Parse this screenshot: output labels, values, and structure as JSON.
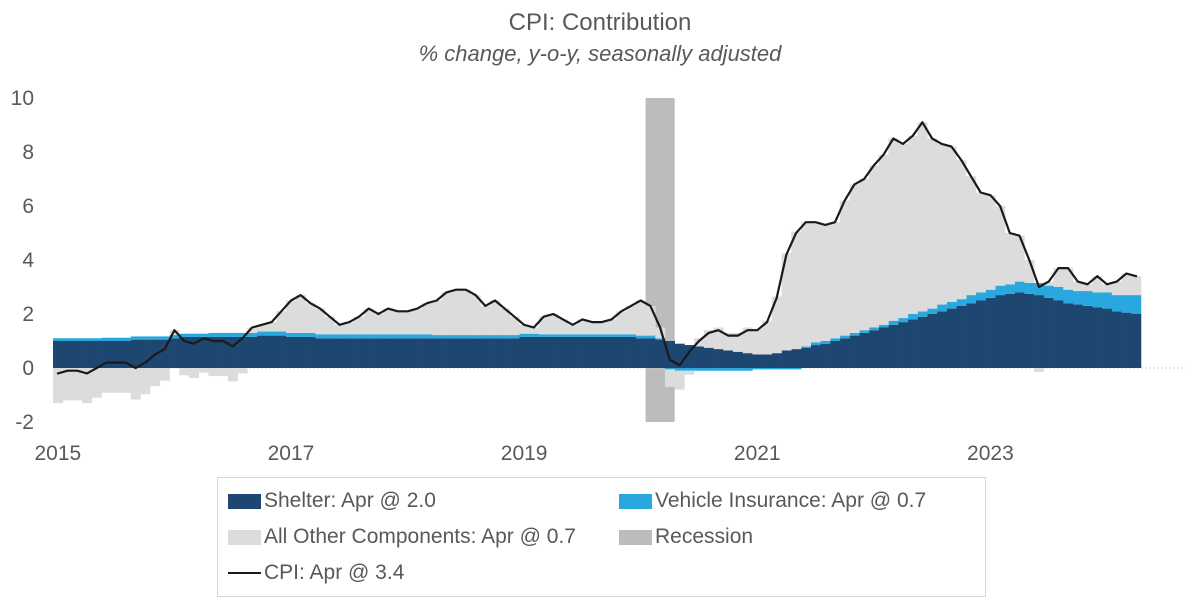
{
  "title": "CPI: Contribution",
  "subtitle": "% change, y-o-y, seasonally adjusted",
  "colors": {
    "shelter": "#1d4670",
    "vehicle_insurance": "#29a8df",
    "all_other": "#dcdcdc",
    "recession": "#bcbcbc",
    "cpi_line": "#1a1a1a",
    "text": "#595959",
    "zero_line": "#cfcfcf",
    "legend_border": "#d6d6d6"
  },
  "legend": {
    "items": [
      {
        "label": "Shelter: Apr @ 2.0",
        "color": "#1d4670",
        "type": "box"
      },
      {
        "label": "Vehicle Insurance: Apr @ 0.7",
        "color": "#29a8df",
        "type": "box"
      },
      {
        "label": "All Other Components: Apr @ 0.7",
        "color": "#dcdcdc",
        "type": "box"
      },
      {
        "label": "Recession",
        "color": "#bcbcbc",
        "type": "box"
      },
      {
        "label": "CPI: Apr @ 3.4",
        "color": "#1a1a1a",
        "type": "line"
      }
    ]
  },
  "chart_data": {
    "type": "bar",
    "subtype": "stacked-monthly-bars-with-line",
    "start": "2015-01",
    "end": "2024-04",
    "frequency": "monthly",
    "title": "CPI: Contribution",
    "subtitle": "% change, y-o-y, seasonally adjusted",
    "xlabel": "",
    "ylabel": "",
    "y_axis": {
      "min": -2,
      "max": 10,
      "ticks": [
        10,
        8,
        6,
        4,
        2,
        0,
        -2
      ],
      "grid": false
    },
    "x_axis": {
      "ticks": [
        {
          "label": "2015",
          "month_index": 0
        },
        {
          "label": "2017",
          "month_index": 24
        },
        {
          "label": "2019",
          "month_index": 48
        },
        {
          "label": "2021",
          "month_index": 72
        },
        {
          "label": "2023",
          "month_index": 96
        }
      ]
    },
    "recession": {
      "label": "Recession",
      "color": "#bcbcbc",
      "start_month_index": 61,
      "end_month_index": 63
    },
    "series": [
      {
        "name": "Shelter: Apr @ 2.0",
        "color": "#1d4670",
        "values": [
          1.0,
          1.0,
          1.0,
          1.0,
          1.0,
          1.0,
          1.0,
          1.0,
          1.05,
          1.05,
          1.05,
          1.05,
          1.1,
          1.15,
          1.15,
          1.15,
          1.15,
          1.15,
          1.15,
          1.15,
          1.15,
          1.2,
          1.2,
          1.2,
          1.15,
          1.15,
          1.15,
          1.1,
          1.1,
          1.1,
          1.1,
          1.1,
          1.1,
          1.1,
          1.1,
          1.1,
          1.1,
          1.1,
          1.1,
          1.1,
          1.1,
          1.1,
          1.1,
          1.1,
          1.1,
          1.1,
          1.1,
          1.1,
          1.15,
          1.15,
          1.15,
          1.15,
          1.15,
          1.15,
          1.15,
          1.15,
          1.15,
          1.15,
          1.15,
          1.15,
          1.1,
          1.1,
          1.05,
          1.0,
          0.9,
          0.85,
          0.8,
          0.75,
          0.7,
          0.65,
          0.6,
          0.55,
          0.5,
          0.5,
          0.55,
          0.65,
          0.7,
          0.75,
          0.85,
          0.9,
          1.0,
          1.1,
          1.2,
          1.3,
          1.4,
          1.5,
          1.6,
          1.7,
          1.8,
          1.9,
          2.0,
          2.1,
          2.2,
          2.3,
          2.4,
          2.5,
          2.6,
          2.7,
          2.75,
          2.8,
          2.75,
          2.7,
          2.6,
          2.5,
          2.4,
          2.35,
          2.3,
          2.25,
          2.2,
          2.1,
          2.05,
          2.0
        ]
      },
      {
        "name": "Vehicle Insurance: Apr @ 0.7",
        "color": "#29a8df",
        "values": [
          0.1,
          0.1,
          0.1,
          0.1,
          0.1,
          0.12,
          0.12,
          0.12,
          0.12,
          0.12,
          0.12,
          0.12,
          0.12,
          0.12,
          0.12,
          0.12,
          0.15,
          0.15,
          0.15,
          0.15,
          0.15,
          0.15,
          0.15,
          0.15,
          0.15,
          0.15,
          0.15,
          0.15,
          0.15,
          0.15,
          0.15,
          0.15,
          0.15,
          0.15,
          0.15,
          0.15,
          0.15,
          0.15,
          0.15,
          0.12,
          0.12,
          0.12,
          0.12,
          0.12,
          0.12,
          0.12,
          0.12,
          0.12,
          0.12,
          0.12,
          0.1,
          0.1,
          0.1,
          0.1,
          0.1,
          0.1,
          0.1,
          0.1,
          0.1,
          0.1,
          0.1,
          0.1,
          0.05,
          -0.05,
          -0.1,
          -0.1,
          -0.1,
          -0.1,
          -0.1,
          -0.1,
          -0.1,
          -0.1,
          -0.05,
          -0.05,
          -0.05,
          -0.05,
          -0.05,
          0.05,
          0.1,
          0.1,
          0.1,
          0.1,
          0.1,
          0.1,
          0.1,
          0.1,
          0.15,
          0.15,
          0.2,
          0.2,
          0.2,
          0.25,
          0.25,
          0.25,
          0.3,
          0.3,
          0.3,
          0.35,
          0.35,
          0.4,
          0.4,
          0.45,
          0.45,
          0.5,
          0.5,
          0.5,
          0.55,
          0.55,
          0.6,
          0.6,
          0.65,
          0.7
        ]
      },
      {
        "name": "All Other Components: Apr @ 0.7",
        "color": "#dcdcdc",
        "values": [
          -1.3,
          -1.2,
          -1.2,
          -1.3,
          -1.1,
          -0.92,
          -0.92,
          -0.92,
          -1.17,
          -0.97,
          -0.67,
          -0.47,
          0.18,
          -0.27,
          -0.37,
          -0.17,
          -0.3,
          -0.3,
          -0.5,
          -0.2,
          0.2,
          0.25,
          0.35,
          0.75,
          1.2,
          1.4,
          1.1,
          0.95,
          0.65,
          0.35,
          0.45,
          0.65,
          0.95,
          0.75,
          0.95,
          0.85,
          0.85,
          0.95,
          1.15,
          1.28,
          1.58,
          1.68,
          1.68,
          1.48,
          1.08,
          1.28,
          0.98,
          0.68,
          0.33,
          0.23,
          0.65,
          0.75,
          0.55,
          0.35,
          0.55,
          0.45,
          0.45,
          0.55,
          0.85,
          1.05,
          1.3,
          1.1,
          0.4,
          -0.65,
          -0.7,
          -0.15,
          0.3,
          0.65,
          0.8,
          0.65,
          0.7,
          0.95,
          0.95,
          1.25,
          2.1,
          3.6,
          4.35,
          4.6,
          4.45,
          4.3,
          4.3,
          5.0,
          5.5,
          5.6,
          6.0,
          6.3,
          6.75,
          6.45,
          6.6,
          7.0,
          6.3,
          5.95,
          5.75,
          5.15,
          4.4,
          3.7,
          3.5,
          2.95,
          1.9,
          1.7,
          0.85,
          -0.15,
          0.15,
          0.7,
          0.8,
          0.35,
          0.25,
          0.6,
          0.3,
          0.5,
          0.8,
          0.7
        ]
      }
    ],
    "line": {
      "name": "CPI: Apr @ 3.4",
      "color": "#1a1a1a",
      "values": [
        -0.2,
        -0.1,
        -0.1,
        -0.2,
        0.0,
        0.2,
        0.2,
        0.2,
        0.0,
        0.2,
        0.5,
        0.7,
        1.4,
        1.0,
        0.9,
        1.1,
        1.0,
        1.0,
        0.8,
        1.1,
        1.5,
        1.6,
        1.7,
        2.1,
        2.5,
        2.7,
        2.4,
        2.2,
        1.9,
        1.6,
        1.7,
        1.9,
        2.2,
        2.0,
        2.2,
        2.1,
        2.1,
        2.2,
        2.4,
        2.5,
        2.8,
        2.9,
        2.9,
        2.7,
        2.3,
        2.5,
        2.2,
        1.9,
        1.6,
        1.5,
        1.9,
        2.0,
        1.8,
        1.6,
        1.8,
        1.7,
        1.7,
        1.8,
        2.1,
        2.3,
        2.5,
        2.3,
        1.5,
        0.3,
        0.1,
        0.6,
        1.0,
        1.3,
        1.4,
        1.2,
        1.2,
        1.4,
        1.4,
        1.7,
        2.6,
        4.2,
        5.0,
        5.4,
        5.4,
        5.3,
        5.4,
        6.2,
        6.8,
        7.0,
        7.5,
        7.9,
        8.5,
        8.3,
        8.6,
        9.1,
        8.5,
        8.3,
        8.2,
        7.7,
        7.1,
        6.5,
        6.4,
        6.0,
        5.0,
        4.9,
        4.0,
        3.0,
        3.2,
        3.7,
        3.7,
        3.2,
        3.1,
        3.4,
        3.1,
        3.2,
        3.5,
        3.4
      ]
    },
    "legend_position": "bottom"
  }
}
